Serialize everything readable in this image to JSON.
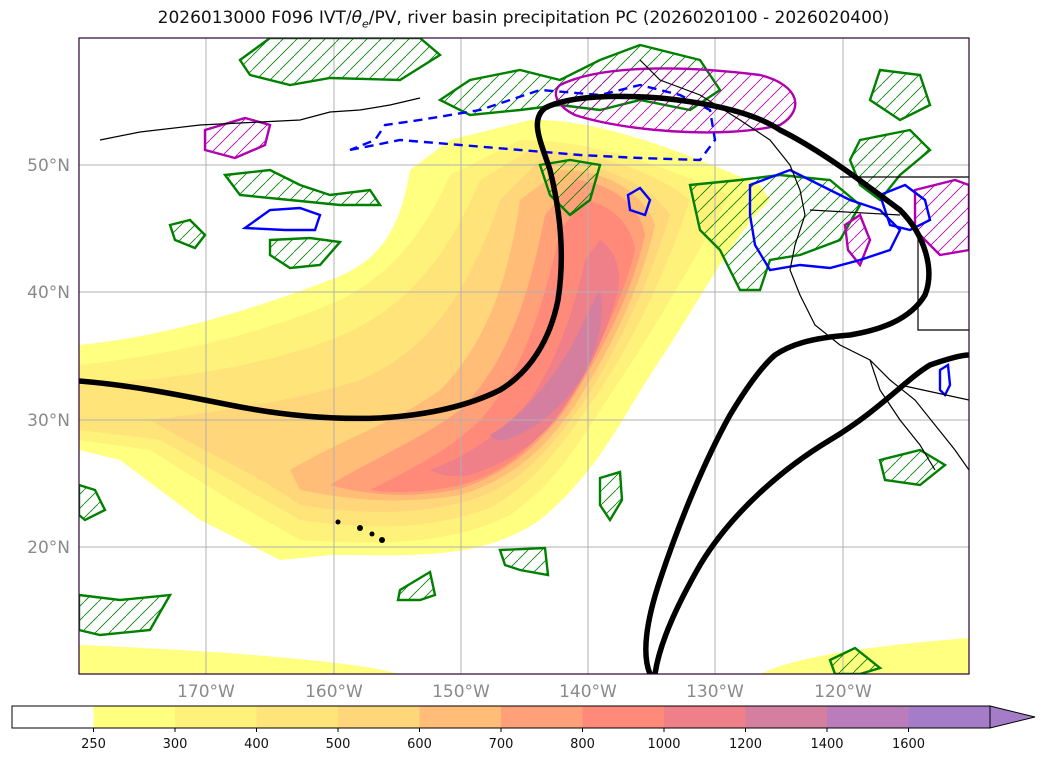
{
  "title": {
    "prefix": "2026013000 F096 IVT/",
    "theta": "θ",
    "theta_sub": "e",
    "suffix": "/PV, river basin precipitation PC (2026020100 - 2026020400)"
  },
  "axes": {
    "lat_labels": [
      "50°N",
      "40°N",
      "30°N",
      "20°N"
    ],
    "lon_labels": [
      "170°W",
      "160°W",
      "150°W",
      "140°W",
      "130°W",
      "120°W"
    ]
  },
  "colorbar": {
    "levels": [
      "250",
      "300",
      "400",
      "500",
      "600",
      "700",
      "800",
      "1000",
      "1200",
      "1400",
      "1600"
    ],
    "colors": [
      "#ffffff",
      "#ffff80",
      "#fff27a",
      "#ffe47a",
      "#ffd67a",
      "#ffbd78",
      "#ffa078",
      "#ff8a7a",
      "#ef7f88",
      "#d47ea0",
      "#bb7cbc",
      "#a47cc8"
    ],
    "extend": "max"
  },
  "legend_colors": {
    "ivt_fill_low": "#fff27a",
    "ivt_fill_mid": "#ffbd78",
    "ivt_fill_high": "#ff8a7a",
    "ivt_fill_core": "#d47ea0",
    "pv_contour": "#000000",
    "precip_pc_green": "#008000",
    "precip_pc_blue": "#0000ff",
    "precip_pc_magenta": "#b000b0"
  }
}
